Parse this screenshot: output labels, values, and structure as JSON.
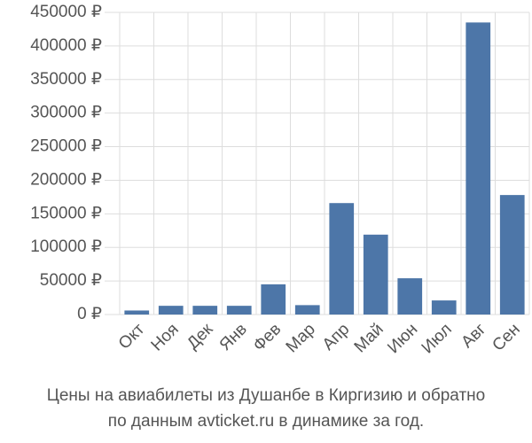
{
  "chart_data": {
    "type": "bar",
    "title": [
      "Цены на авиабилеты из Душанбе в Киргизию и обратно",
      "по данным avticket.ru в динамике за год."
    ],
    "categories": [
      "Окт",
      "Ноя",
      "Дек",
      "Янв",
      "Фев",
      "Мар",
      "Апр",
      "Май",
      "Июн",
      "Июл",
      "Авг",
      "Сен"
    ],
    "values": [
      6000,
      13000,
      13000,
      13000,
      45000,
      14000,
      166000,
      119000,
      54000,
      21000,
      435000,
      178000
    ],
    "color": "#4d76a8",
    "ylim": [
      0,
      450000
    ],
    "yticks": [
      {
        "value": 0,
        "label": "0 ₽"
      },
      {
        "value": 50000,
        "label": "50000 ₽"
      },
      {
        "value": 100000,
        "label": "100000 ₽"
      },
      {
        "value": 150000,
        "label": "150000 ₽"
      },
      {
        "value": 200000,
        "label": "200000 ₽"
      },
      {
        "value": 250000,
        "label": "250000 ₽"
      },
      {
        "value": 300000,
        "label": "300000 ₽"
      },
      {
        "value": 350000,
        "label": "350000 ₽"
      },
      {
        "value": 400000,
        "label": "400000 ₽"
      },
      {
        "value": 450000,
        "label": "450000 ₽"
      }
    ],
    "grid": true
  }
}
